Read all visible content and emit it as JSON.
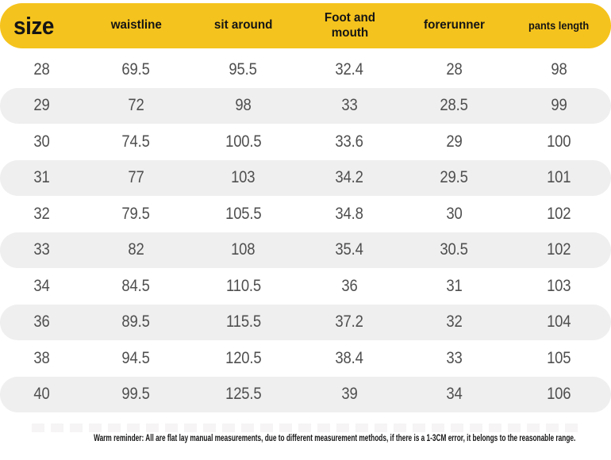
{
  "chart_data": {
    "type": "table",
    "title": "size",
    "columns": [
      "size",
      "waistline",
      "sit around",
      "Foot and mouth",
      "forerunner",
      "pants length"
    ],
    "rows": [
      [
        "28",
        "69.5",
        "95.5",
        "32.4",
        "28",
        "98"
      ],
      [
        "29",
        "72",
        "98",
        "33",
        "28.5",
        "99"
      ],
      [
        "30",
        "74.5",
        "100.5",
        "33.6",
        "29",
        "100"
      ],
      [
        "31",
        "77",
        "103",
        "34.2",
        "29.5",
        "101"
      ],
      [
        "32",
        "79.5",
        "105.5",
        "34.8",
        "30",
        "102"
      ],
      [
        "33",
        "82",
        "108",
        "35.4",
        "30.5",
        "102"
      ],
      [
        "34",
        "84.5",
        "110.5",
        "36",
        "31",
        "103"
      ],
      [
        "36",
        "89.5",
        "115.5",
        "37.2",
        "32",
        "104"
      ],
      [
        "38",
        "94.5",
        "120.5",
        "38.4",
        "33",
        "105"
      ],
      [
        "40",
        "99.5",
        "125.5",
        "39",
        "34",
        "106"
      ]
    ],
    "layout": {
      "header_style": "yellow-pill",
      "row_alternation": "white / light-gray pill"
    }
  },
  "footer": {
    "reminder": "Warm reminder: All are flat lay manual measurements, due to different measurement methods, if there is a 1-3CM error, it belongs to the reasonable range."
  },
  "colors": {
    "header_bg": "#F5C31D",
    "header_text": "#151515",
    "row_alt_bg": "#F0EFEF",
    "cell_text": "#4F4F4F",
    "page_bg": "#FFFFFF"
  }
}
